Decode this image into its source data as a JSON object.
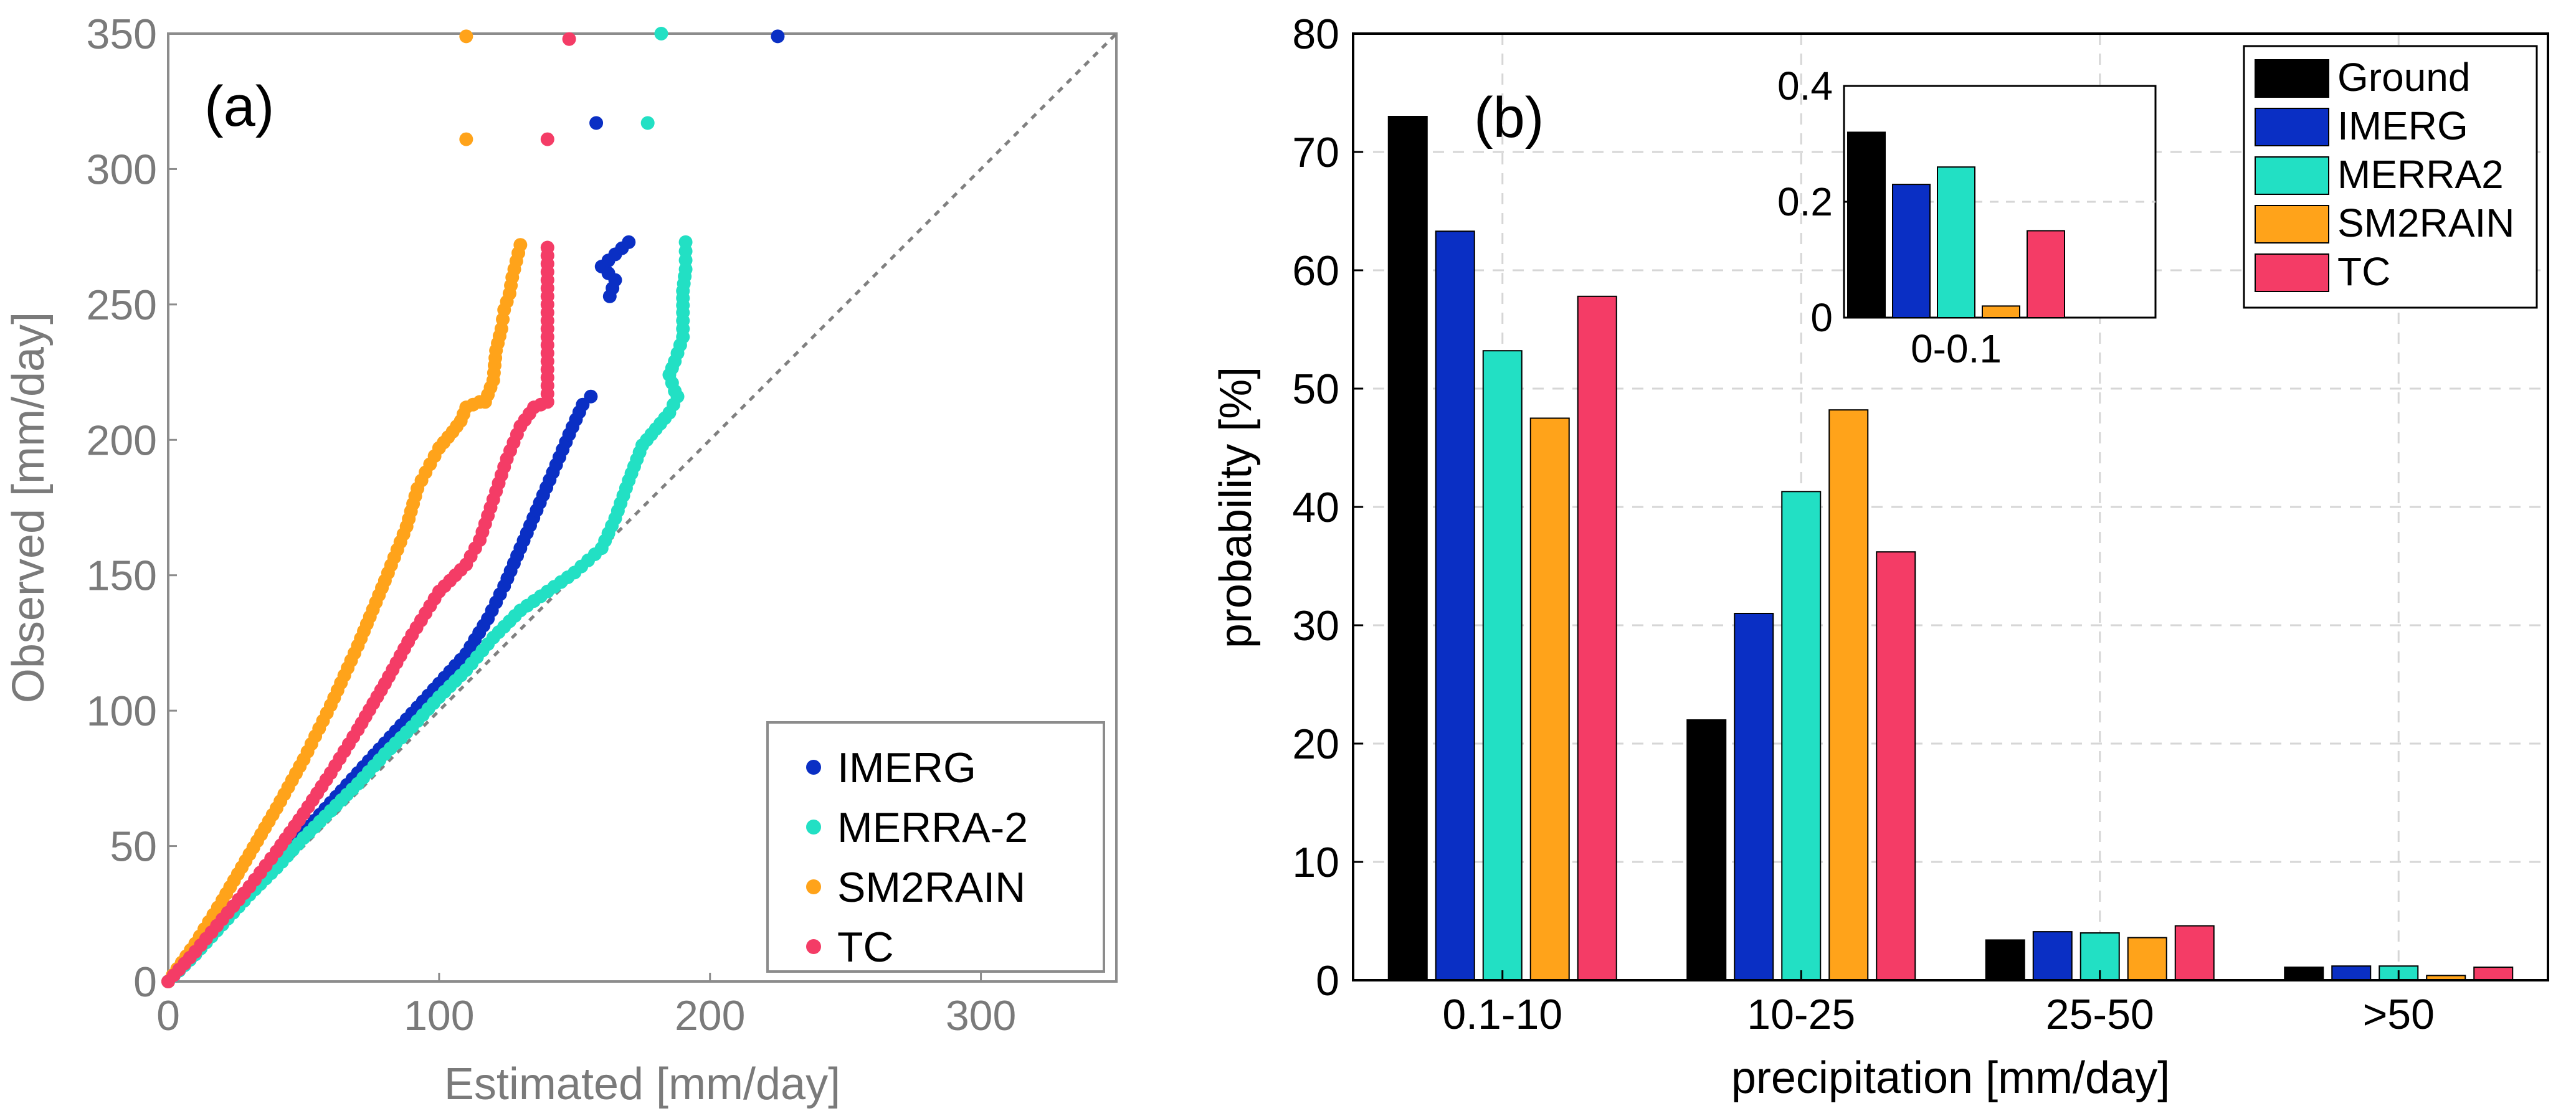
{
  "colors": {
    "ground": "#000000",
    "imerg": "#0a2fc4",
    "merra": "#22e0c4",
    "sm2rain": "#ffa31a",
    "tc": "#f43c66",
    "axis_a": "#7a7a7a",
    "axis_b": "#000000",
    "grid": "#d6d6d6",
    "ref_line": "#808080"
  },
  "chart_data": [
    {
      "type": "scatter",
      "panel_label": "(a)",
      "title": "",
      "xlabel": "Estimated [mm/day]",
      "ylabel": "Observed [mm/day]",
      "xlim": [
        0,
        350
      ],
      "ylim": [
        0,
        350
      ],
      "xticks": [
        0,
        100,
        200,
        300
      ],
      "yticks": [
        0,
        50,
        100,
        150,
        200,
        250,
        300,
        350
      ],
      "grid": false,
      "reference_line": "1:1",
      "legend_position": "bottom-right",
      "series": [
        {
          "name": "IMERG",
          "color_key": "imerg",
          "points": [
            [
              0,
              0
            ],
            [
              10,
              10
            ],
            [
              20,
              22
            ],
            [
              30,
              33
            ],
            [
              40,
              44
            ],
            [
              50,
              55
            ],
            [
              60,
              66
            ],
            [
              70,
              77
            ],
            [
              80,
              88
            ],
            [
              90,
              99
            ],
            [
              100,
              110
            ],
            [
              110,
              121
            ],
            [
              118,
              134
            ],
            [
              124,
              146
            ],
            [
              130,
              160
            ],
            [
              136,
              174
            ],
            [
              142,
              188
            ],
            [
              148,
              202
            ],
            [
              153,
              213
            ],
            [
              156,
              216
            ],
            [
              163,
              253
            ],
            [
              165,
              259
            ],
            [
              160,
              264
            ],
            [
              170,
              273
            ],
            [
              158,
              317
            ],
            [
              225,
              349
            ]
          ]
        },
        {
          "name": "MERRA-2",
          "color_key": "merra",
          "points": [
            [
              0,
              0
            ],
            [
              10,
              10
            ],
            [
              20,
              21
            ],
            [
              30,
              32
            ],
            [
              40,
              42
            ],
            [
              50,
              53
            ],
            [
              60,
              63
            ],
            [
              70,
              73
            ],
            [
              80,
              84
            ],
            [
              90,
              94
            ],
            [
              100,
              105
            ],
            [
              110,
              115
            ],
            [
              120,
              127
            ],
            [
              130,
              137
            ],
            [
              140,
              144
            ],
            [
              150,
              151
            ],
            [
              160,
              160
            ],
            [
              165,
              171
            ],
            [
              170,
              185
            ],
            [
              175,
              198
            ],
            [
              180,
              204
            ],
            [
              185,
              210
            ],
            [
              188,
              216
            ],
            [
              187,
              218
            ],
            [
              185,
              224
            ],
            [
              187,
              229
            ],
            [
              190,
              238
            ],
            [
              190,
              247
            ],
            [
              190,
              255
            ],
            [
              191,
              263
            ],
            [
              191,
              273
            ],
            [
              177,
              317
            ],
            [
              182,
              350
            ]
          ]
        },
        {
          "name": "SM2RAIN",
          "color_key": "sm2rain",
          "points": [
            [
              0,
              0
            ],
            [
              10,
              14
            ],
            [
              20,
              30
            ],
            [
              30,
              47
            ],
            [
              40,
              64
            ],
            [
              50,
              82
            ],
            [
              60,
              102
            ],
            [
              70,
              124
            ],
            [
              80,
              148
            ],
            [
              88,
              168
            ],
            [
              92,
              182
            ],
            [
              95,
              188
            ],
            [
              100,
              197
            ],
            [
              105,
              203
            ],
            [
              108,
              207
            ],
            [
              110,
              212
            ],
            [
              115,
              214
            ],
            [
              117,
              214
            ],
            [
              120,
              222
            ],
            [
              121,
              233
            ],
            [
              123,
              241
            ],
            [
              124,
              248
            ],
            [
              126,
              254
            ],
            [
              127,
              260
            ],
            [
              130,
              272
            ],
            [
              110,
              311
            ],
            [
              110,
              349
            ]
          ]
        },
        {
          "name": "TC",
          "color_key": "tc",
          "points": [
            [
              0,
              0
            ],
            [
              10,
              11
            ],
            [
              20,
              23
            ],
            [
              30,
              35
            ],
            [
              40,
              48
            ],
            [
              50,
              62
            ],
            [
              60,
              77
            ],
            [
              70,
              93
            ],
            [
              80,
              110
            ],
            [
              90,
              128
            ],
            [
              100,
              144
            ],
            [
              110,
              154
            ],
            [
              115,
              163
            ],
            [
              120,
              178
            ],
            [
              125,
              193
            ],
            [
              130,
              205
            ],
            [
              135,
              212
            ],
            [
              140,
              214
            ],
            [
              140,
              229
            ],
            [
              140,
              238
            ],
            [
              140,
              250
            ],
            [
              140,
              256
            ],
            [
              140,
              262
            ],
            [
              140,
              271
            ],
            [
              140,
              311
            ],
            [
              148,
              348
            ]
          ]
        }
      ]
    },
    {
      "type": "bar",
      "panel_label": "(b)",
      "title": "",
      "xlabel": "precipitation [mm/day]",
      "ylabel": "probability [%]",
      "ylim": [
        0,
        80
      ],
      "yticks": [
        0,
        10,
        20,
        30,
        40,
        50,
        60,
        70,
        80
      ],
      "grid": true,
      "legend_position": "top-right",
      "categories": [
        "0.1-10",
        "10-25",
        "25-50",
        ">50"
      ],
      "series": [
        {
          "name": "Ground",
          "color_key": "ground",
          "values": [
            73.0,
            22.0,
            3.4,
            1.1
          ]
        },
        {
          "name": "IMERG",
          "color_key": "imerg",
          "values": [
            63.3,
            31.0,
            4.1,
            1.2
          ]
        },
        {
          "name": "MERRA2",
          "color_key": "merra",
          "values": [
            53.2,
            41.3,
            4.0,
            1.2
          ]
        },
        {
          "name": "SM2RAIN",
          "color_key": "sm2rain",
          "values": [
            47.5,
            48.2,
            3.6,
            0.4
          ]
        },
        {
          "name": "TC",
          "color_key": "tc",
          "values": [
            57.8,
            36.2,
            4.6,
            1.1
          ]
        }
      ],
      "inset": {
        "categories": [
          "0-0.1"
        ],
        "ylim": [
          0,
          0.4
        ],
        "yticks": [
          "0",
          "0.2",
          "0.4"
        ],
        "values": [
          0.32,
          0.23,
          0.26,
          0.02,
          0.15
        ]
      }
    }
  ]
}
